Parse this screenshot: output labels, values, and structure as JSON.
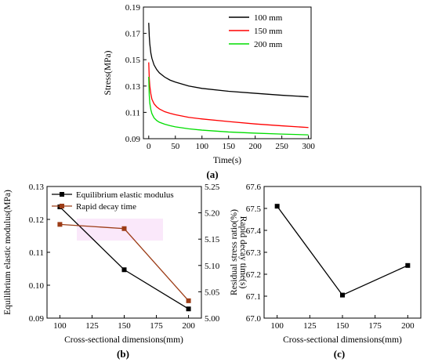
{
  "chart_data": [
    {
      "panel": "(a)",
      "type": "line",
      "xlabel": "Time(s)",
      "ylabel": "Stress(MPa)",
      "xlim": [
        -10,
        305
      ],
      "ylim": [
        0.09,
        0.19
      ],
      "xticks": [
        0,
        50,
        100,
        150,
        200,
        250,
        300
      ],
      "yticks": [
        0.09,
        0.11,
        0.13,
        0.15,
        0.17,
        0.19
      ],
      "grid": false,
      "legend": "top-right",
      "x": [
        0,
        1,
        2,
        4,
        6,
        10,
        15,
        20,
        30,
        40,
        50,
        75,
        100,
        150,
        200,
        250,
        300
      ],
      "series": [
        {
          "name": "100 mm",
          "color": "#000000",
          "values": [
            0.178,
            0.168,
            0.162,
            0.155,
            0.151,
            0.146,
            0.1425,
            0.14,
            0.1368,
            0.1345,
            0.133,
            0.13,
            0.1282,
            0.126,
            0.1245,
            0.123,
            0.1218
          ]
        },
        {
          "name": "150 mm",
          "color": "#ff0000",
          "values": [
            0.148,
            0.136,
            0.13,
            0.124,
            0.12,
            0.1165,
            0.1142,
            0.1126,
            0.1105,
            0.1093,
            0.1082,
            0.1062,
            0.105,
            0.103,
            0.1012,
            0.0998,
            0.0985
          ]
        },
        {
          "name": "200 mm",
          "color": "#00dd00",
          "values": [
            0.137,
            0.123,
            0.117,
            0.112,
            0.109,
            0.1058,
            0.1038,
            0.1025,
            0.101,
            0.0999,
            0.099,
            0.0975,
            0.0965,
            0.0951,
            0.0942,
            0.0935,
            0.0929
          ]
        }
      ]
    },
    {
      "panel": "(b)",
      "type": "line",
      "xlabel": "Cross-sectional dimensions(mm)",
      "ylabel": "Equilibrium elastic modulus(MPa)",
      "ylabel_right": "Rapid decay time(s)",
      "xlim": [
        90,
        210
      ],
      "ylim": [
        0.09,
        0.13
      ],
      "ylim_right": [
        5.0,
        5.25
      ],
      "xticks": [
        100,
        125,
        150,
        175,
        200
      ],
      "yticks": [
        0.09,
        0.1,
        0.11,
        0.12,
        0.13
      ],
      "yticks_right": [
        5.0,
        5.05,
        5.1,
        5.15,
        5.2,
        5.25
      ],
      "legend": "top-left",
      "x": [
        100,
        150,
        200
      ],
      "series": [
        {
          "name": "Equilibrium elastic modulus",
          "color": "#000000",
          "axis": "left",
          "marker": "square",
          "values": [
            0.1238,
            0.1047,
            0.0928
          ]
        },
        {
          "name": "Rapid decay time",
          "color": "#9c3c16",
          "axis": "right",
          "marker": "square",
          "values": [
            5.178,
            5.17,
            5.033
          ]
        }
      ]
    },
    {
      "panel": "(c)",
      "type": "line",
      "xlabel": "Cross-sectional dimensions(mm)",
      "ylabel": "Residual stress ratio(%)",
      "xlim": [
        90,
        210
      ],
      "ylim": [
        67.0,
        67.6
      ],
      "xticks": [
        100,
        125,
        150,
        175,
        200
      ],
      "yticks": [
        67.0,
        67.1,
        67.2,
        67.3,
        67.4,
        67.5,
        67.6
      ],
      "x": [
        100,
        150,
        200
      ],
      "series": [
        {
          "color": "#000000",
          "marker": "square",
          "values": [
            67.51,
            67.105,
            67.24
          ]
        }
      ]
    }
  ]
}
